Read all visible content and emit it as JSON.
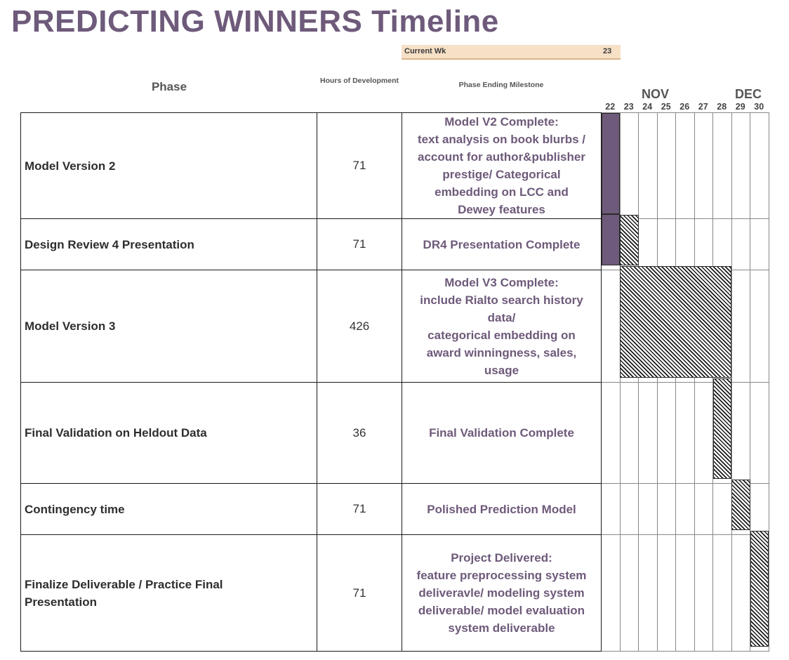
{
  "title": "PREDICTING WINNERS Timeline",
  "current_week": {
    "label": "Current Wk",
    "value": "23"
  },
  "headers": {
    "phase": "Phase",
    "hours": "Hours of Development",
    "milestone": "Phase Ending Milestone"
  },
  "months": [
    {
      "name": "NOV",
      "weeks": [
        "22",
        "23",
        "24",
        "25",
        "26",
        "27",
        "28"
      ]
    },
    {
      "name": "DEC",
      "weeks": [
        "29",
        "30"
      ]
    }
  ],
  "colors": {
    "accent": "#6e5a7a",
    "current_week_band": "#f6e0c6"
  },
  "chart_data": {
    "type": "table",
    "title": "PREDICTING WINNERS Timeline",
    "rows": [
      {
        "phase": "Model Version 2",
        "hours": 71,
        "milestone": "Model V2 Complete:\ntext analysis on book blurbs /\naccount for author&publisher\nprestige/ Categorical\nembedding on LCC and\nDewey features",
        "start_week": 22,
        "end_week": 22,
        "style": "solid"
      },
      {
        "phase": "Design Review 4 Presentation",
        "hours": 71,
        "milestone": "DR4 Presentation Complete",
        "start_week": 23,
        "end_week": 23,
        "style": "hatched"
      },
      {
        "phase": "Model Version 3",
        "hours": 426,
        "milestone": "Model V3 Complete:\ninclude Rialto search history\ndata/\ncategorical embedding on\naward winningness, sales,\nusage",
        "start_week": 23,
        "end_week": 28,
        "style": "hatched"
      },
      {
        "phase": "Final Validation on Heldout Data",
        "hours": 36,
        "milestone": "Final Validation Complete",
        "start_week": 28,
        "end_week": 28,
        "style": "hatched"
      },
      {
        "phase": "Contingency time",
        "hours": 71,
        "milestone": "Polished Prediction Model",
        "start_week": 29,
        "end_week": 29,
        "style": "hatched"
      },
      {
        "phase": "Finalize Deliverable / Practice Final\nPresentation",
        "hours": 71,
        "milestone": "Project Delivered:\nfeature preprocessing system\ndeliveravle/ modeling system\ndeliverable/ model evaluation\nsystem deliverable",
        "start_week": 30,
        "end_week": 30,
        "style": "hatched"
      }
    ]
  }
}
